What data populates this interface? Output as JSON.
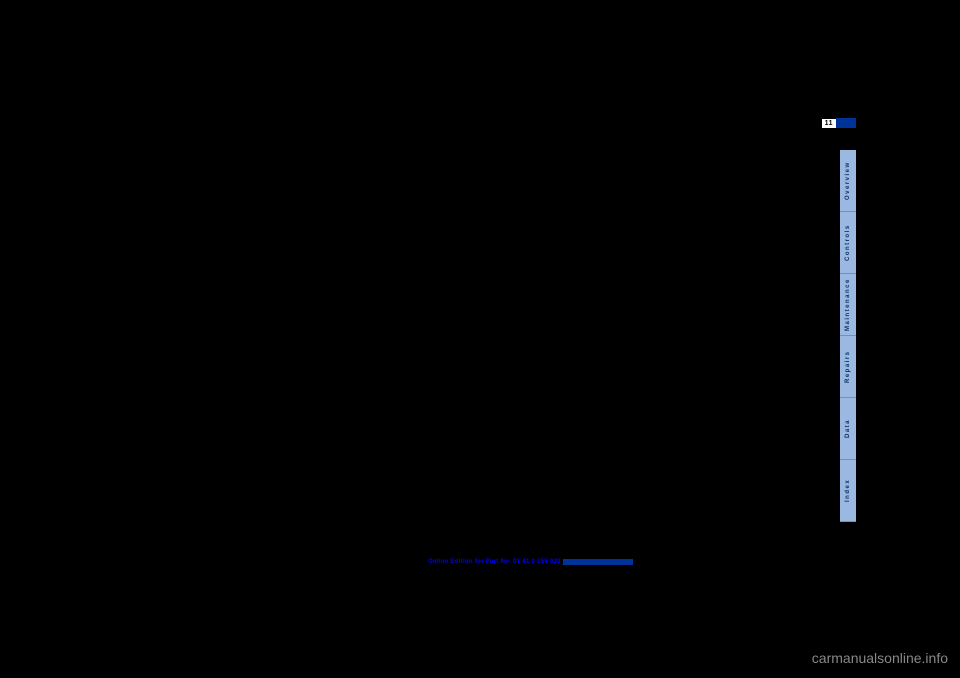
{
  "page_number": "11",
  "page_number_bg": "#ffffff",
  "page_number_accent": "#003399",
  "tabs": {
    "bg_color": "#9bb8e0",
    "text_color": "#003366",
    "items": [
      {
        "label": "Overview"
      },
      {
        "label": "Controls"
      },
      {
        "label": "Maintenance"
      },
      {
        "label": "Repairs"
      },
      {
        "label": "Data"
      },
      {
        "label": "Index"
      }
    ]
  },
  "bottom_bar": {
    "text": "Online Edition for Part No. 01 41 0 155 023",
    "text_color": "#0000ff",
    "accent_color": "#003399"
  },
  "watermark": "carmanualsonline.info",
  "background_color": "#000000"
}
